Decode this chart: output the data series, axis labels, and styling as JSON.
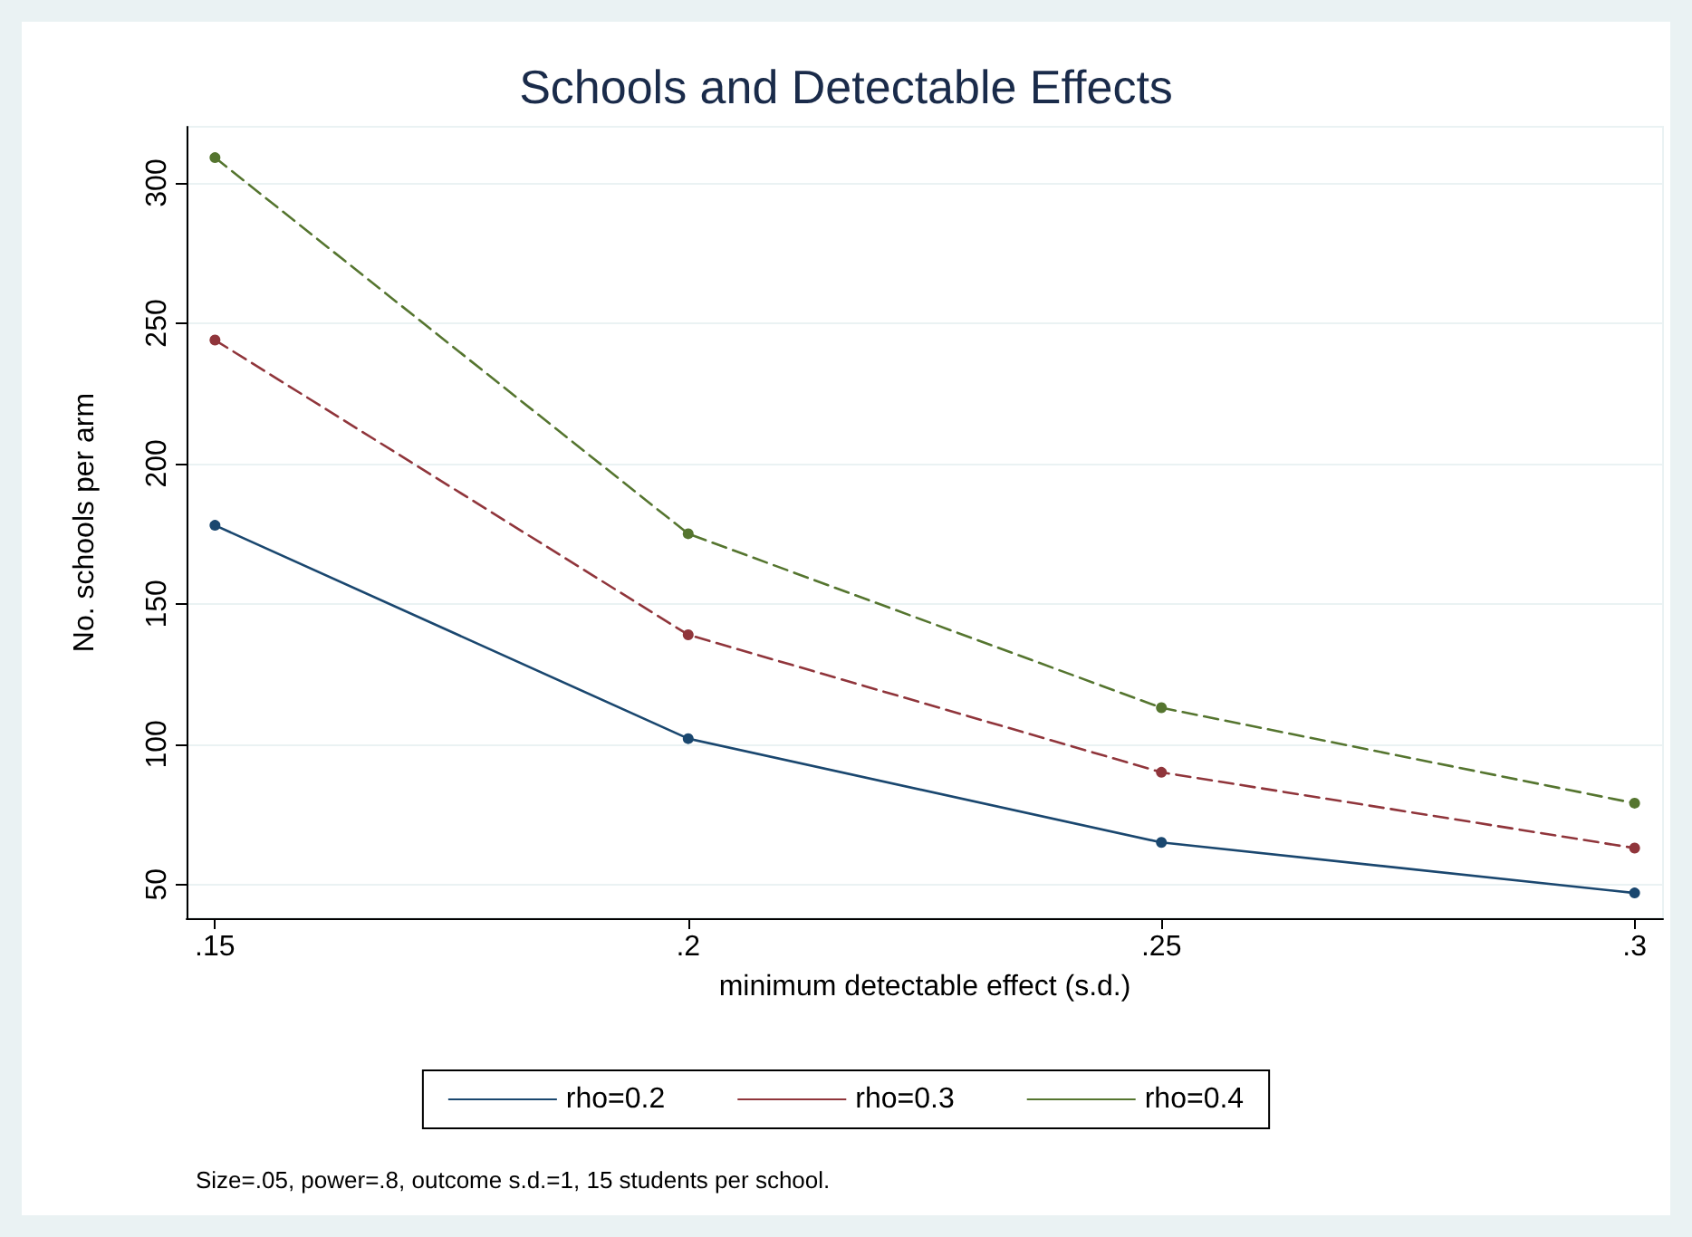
{
  "chart_data": {
    "type": "line",
    "title": "Schools and Detectable Effects",
    "xlabel": "minimum detectable effect (s.d.)",
    "ylabel": "No. schools per arm",
    "x": [
      0.15,
      0.2,
      0.25,
      0.3
    ],
    "series": [
      {
        "name": "rho=0.2",
        "color": "#1a476f",
        "values": [
          178,
          102,
          65,
          47
        ],
        "line_style": "solid"
      },
      {
        "name": "rho=0.3",
        "color": "#90353b",
        "values": [
          244,
          139,
          90,
          63
        ],
        "line_style": "dashed"
      },
      {
        "name": "rho=0.4",
        "color": "#55752f",
        "values": [
          309,
          175,
          113,
          79
        ],
        "line_style": "dashed"
      }
    ],
    "xlim": [
      0.147,
      0.303
    ],
    "xticks": [
      {
        "value": 0.15,
        "label": ".15"
      },
      {
        "value": 0.2,
        "label": ".2"
      },
      {
        "value": 0.25,
        "label": ".25"
      },
      {
        "value": 0.3,
        "label": ".3"
      }
    ],
    "ylim": [
      38,
      320
    ],
    "yticks": [
      50,
      100,
      150,
      200,
      250,
      300
    ],
    "grid": "y",
    "legend": "bottom",
    "marker": "circle",
    "annotations": [
      "Size=.05, power=.8, outcome s.d.=1, 15 students per school."
    ]
  }
}
